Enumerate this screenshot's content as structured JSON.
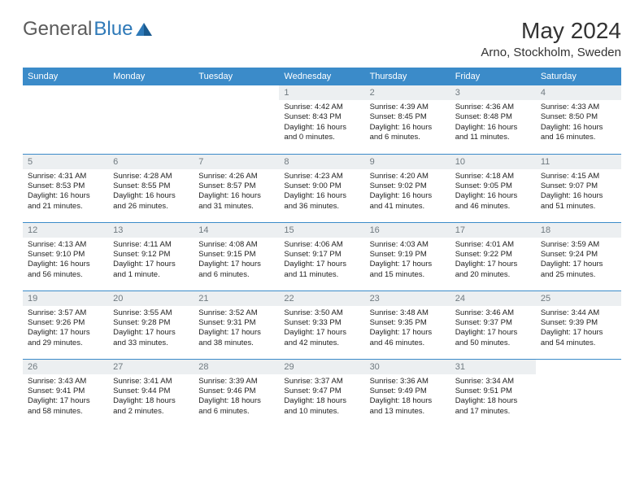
{
  "logo": {
    "part1": "General",
    "part2": "Blue"
  },
  "title": "May 2024",
  "location": "Arno, Stockholm, Sweden",
  "colors": {
    "header_bg": "#3b8bc9",
    "header_text": "#ffffff",
    "daynum_bg": "#eceff1",
    "daynum_text": "#707a80",
    "border": "#3b8bc9",
    "logo_gray": "#5b5b5b",
    "logo_blue": "#2e79b8"
  },
  "weekdays": [
    "Sunday",
    "Monday",
    "Tuesday",
    "Wednesday",
    "Thursday",
    "Friday",
    "Saturday"
  ],
  "weeks": [
    [
      {
        "empty": true
      },
      {
        "empty": true
      },
      {
        "empty": true
      },
      {
        "day": "1",
        "sunrise": "Sunrise: 4:42 AM",
        "sunset": "Sunset: 8:43 PM",
        "daylight1": "Daylight: 16 hours",
        "daylight2": "and 0 minutes."
      },
      {
        "day": "2",
        "sunrise": "Sunrise: 4:39 AM",
        "sunset": "Sunset: 8:45 PM",
        "daylight1": "Daylight: 16 hours",
        "daylight2": "and 6 minutes."
      },
      {
        "day": "3",
        "sunrise": "Sunrise: 4:36 AM",
        "sunset": "Sunset: 8:48 PM",
        "daylight1": "Daylight: 16 hours",
        "daylight2": "and 11 minutes."
      },
      {
        "day": "4",
        "sunrise": "Sunrise: 4:33 AM",
        "sunset": "Sunset: 8:50 PM",
        "daylight1": "Daylight: 16 hours",
        "daylight2": "and 16 minutes."
      }
    ],
    [
      {
        "day": "5",
        "sunrise": "Sunrise: 4:31 AM",
        "sunset": "Sunset: 8:53 PM",
        "daylight1": "Daylight: 16 hours",
        "daylight2": "and 21 minutes."
      },
      {
        "day": "6",
        "sunrise": "Sunrise: 4:28 AM",
        "sunset": "Sunset: 8:55 PM",
        "daylight1": "Daylight: 16 hours",
        "daylight2": "and 26 minutes."
      },
      {
        "day": "7",
        "sunrise": "Sunrise: 4:26 AM",
        "sunset": "Sunset: 8:57 PM",
        "daylight1": "Daylight: 16 hours",
        "daylight2": "and 31 minutes."
      },
      {
        "day": "8",
        "sunrise": "Sunrise: 4:23 AM",
        "sunset": "Sunset: 9:00 PM",
        "daylight1": "Daylight: 16 hours",
        "daylight2": "and 36 minutes."
      },
      {
        "day": "9",
        "sunrise": "Sunrise: 4:20 AM",
        "sunset": "Sunset: 9:02 PM",
        "daylight1": "Daylight: 16 hours",
        "daylight2": "and 41 minutes."
      },
      {
        "day": "10",
        "sunrise": "Sunrise: 4:18 AM",
        "sunset": "Sunset: 9:05 PM",
        "daylight1": "Daylight: 16 hours",
        "daylight2": "and 46 minutes."
      },
      {
        "day": "11",
        "sunrise": "Sunrise: 4:15 AM",
        "sunset": "Sunset: 9:07 PM",
        "daylight1": "Daylight: 16 hours",
        "daylight2": "and 51 minutes."
      }
    ],
    [
      {
        "day": "12",
        "sunrise": "Sunrise: 4:13 AM",
        "sunset": "Sunset: 9:10 PM",
        "daylight1": "Daylight: 16 hours",
        "daylight2": "and 56 minutes."
      },
      {
        "day": "13",
        "sunrise": "Sunrise: 4:11 AM",
        "sunset": "Sunset: 9:12 PM",
        "daylight1": "Daylight: 17 hours",
        "daylight2": "and 1 minute."
      },
      {
        "day": "14",
        "sunrise": "Sunrise: 4:08 AM",
        "sunset": "Sunset: 9:15 PM",
        "daylight1": "Daylight: 17 hours",
        "daylight2": "and 6 minutes."
      },
      {
        "day": "15",
        "sunrise": "Sunrise: 4:06 AM",
        "sunset": "Sunset: 9:17 PM",
        "daylight1": "Daylight: 17 hours",
        "daylight2": "and 11 minutes."
      },
      {
        "day": "16",
        "sunrise": "Sunrise: 4:03 AM",
        "sunset": "Sunset: 9:19 PM",
        "daylight1": "Daylight: 17 hours",
        "daylight2": "and 15 minutes."
      },
      {
        "day": "17",
        "sunrise": "Sunrise: 4:01 AM",
        "sunset": "Sunset: 9:22 PM",
        "daylight1": "Daylight: 17 hours",
        "daylight2": "and 20 minutes."
      },
      {
        "day": "18",
        "sunrise": "Sunrise: 3:59 AM",
        "sunset": "Sunset: 9:24 PM",
        "daylight1": "Daylight: 17 hours",
        "daylight2": "and 25 minutes."
      }
    ],
    [
      {
        "day": "19",
        "sunrise": "Sunrise: 3:57 AM",
        "sunset": "Sunset: 9:26 PM",
        "daylight1": "Daylight: 17 hours",
        "daylight2": "and 29 minutes."
      },
      {
        "day": "20",
        "sunrise": "Sunrise: 3:55 AM",
        "sunset": "Sunset: 9:28 PM",
        "daylight1": "Daylight: 17 hours",
        "daylight2": "and 33 minutes."
      },
      {
        "day": "21",
        "sunrise": "Sunrise: 3:52 AM",
        "sunset": "Sunset: 9:31 PM",
        "daylight1": "Daylight: 17 hours",
        "daylight2": "and 38 minutes."
      },
      {
        "day": "22",
        "sunrise": "Sunrise: 3:50 AM",
        "sunset": "Sunset: 9:33 PM",
        "daylight1": "Daylight: 17 hours",
        "daylight2": "and 42 minutes."
      },
      {
        "day": "23",
        "sunrise": "Sunrise: 3:48 AM",
        "sunset": "Sunset: 9:35 PM",
        "daylight1": "Daylight: 17 hours",
        "daylight2": "and 46 minutes."
      },
      {
        "day": "24",
        "sunrise": "Sunrise: 3:46 AM",
        "sunset": "Sunset: 9:37 PM",
        "daylight1": "Daylight: 17 hours",
        "daylight2": "and 50 minutes."
      },
      {
        "day": "25",
        "sunrise": "Sunrise: 3:44 AM",
        "sunset": "Sunset: 9:39 PM",
        "daylight1": "Daylight: 17 hours",
        "daylight2": "and 54 minutes."
      }
    ],
    [
      {
        "day": "26",
        "sunrise": "Sunrise: 3:43 AM",
        "sunset": "Sunset: 9:41 PM",
        "daylight1": "Daylight: 17 hours",
        "daylight2": "and 58 minutes."
      },
      {
        "day": "27",
        "sunrise": "Sunrise: 3:41 AM",
        "sunset": "Sunset: 9:44 PM",
        "daylight1": "Daylight: 18 hours",
        "daylight2": "and 2 minutes."
      },
      {
        "day": "28",
        "sunrise": "Sunrise: 3:39 AM",
        "sunset": "Sunset: 9:46 PM",
        "daylight1": "Daylight: 18 hours",
        "daylight2": "and 6 minutes."
      },
      {
        "day": "29",
        "sunrise": "Sunrise: 3:37 AM",
        "sunset": "Sunset: 9:47 PM",
        "daylight1": "Daylight: 18 hours",
        "daylight2": "and 10 minutes."
      },
      {
        "day": "30",
        "sunrise": "Sunrise: 3:36 AM",
        "sunset": "Sunset: 9:49 PM",
        "daylight1": "Daylight: 18 hours",
        "daylight2": "and 13 minutes."
      },
      {
        "day": "31",
        "sunrise": "Sunrise: 3:34 AM",
        "sunset": "Sunset: 9:51 PM",
        "daylight1": "Daylight: 18 hours",
        "daylight2": "and 17 minutes."
      },
      {
        "empty": true
      }
    ]
  ]
}
